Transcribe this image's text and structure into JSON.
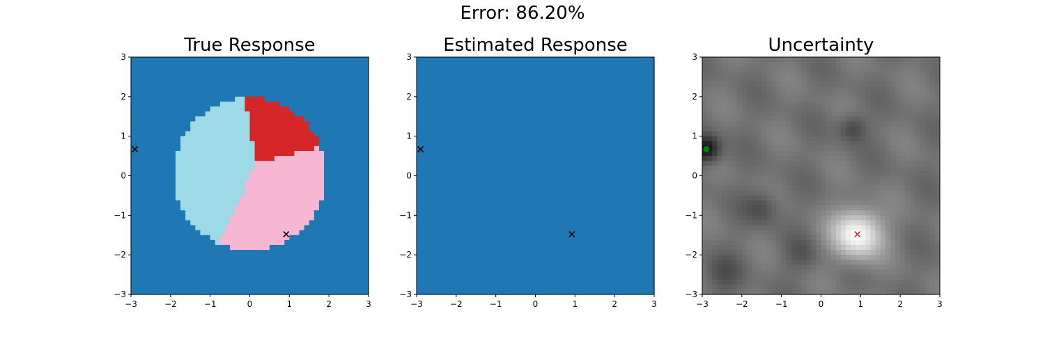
{
  "figure": {
    "suptitle": "Error: 86.20%"
  },
  "chart_data": [
    {
      "type": "heatmap",
      "title": "True Response",
      "xlim": [
        -3,
        3
      ],
      "ylim": [
        -3,
        3
      ],
      "xticks": [
        -3,
        -2,
        -1,
        0,
        1,
        2,
        3
      ],
      "yticks": [
        -3,
        -2,
        -1,
        0,
        1,
        2,
        3
      ],
      "grid": false,
      "colors": {
        "background": "#1f77b4",
        "region_a": "#9edae5",
        "region_b": "#d62728",
        "region_c": "#f7b6d2"
      },
      "regions_description": "disc centered near (0, 0) radius about 1.9 split into three sectors",
      "markers": [
        {
          "x": -2.9,
          "y": 0.67,
          "symbol": "x",
          "color": "#000000"
        },
        {
          "x": 0.92,
          "y": -1.48,
          "symbol": "x",
          "color": "#000000"
        }
      ]
    },
    {
      "type": "heatmap",
      "title": "Estimated Response",
      "xlim": [
        -3,
        3
      ],
      "ylim": [
        -3,
        3
      ],
      "xticks": [
        -3,
        -2,
        -1,
        0,
        1,
        2,
        3
      ],
      "yticks": [
        -3,
        -2,
        -1,
        0,
        1,
        2,
        3
      ],
      "grid": false,
      "colors": {
        "background": "#1f77b4"
      },
      "markers": [
        {
          "x": -2.9,
          "y": 0.67,
          "symbol": "x",
          "color": "#000000"
        },
        {
          "x": 0.92,
          "y": -1.48,
          "symbol": "x",
          "color": "#000000"
        }
      ]
    },
    {
      "type": "heatmap",
      "title": "Uncertainty",
      "xlim": [
        -3,
        3
      ],
      "ylim": [
        -3,
        3
      ],
      "xticks": [
        -3,
        -2,
        -1,
        0,
        1,
        2,
        3
      ],
      "yticks": [
        -3,
        -2,
        -1,
        0,
        1,
        2,
        3
      ],
      "grid": false,
      "colormap": "gray",
      "markers": [
        {
          "x": -2.9,
          "y": 0.67,
          "symbol": "o",
          "color": "#008000"
        },
        {
          "x": 0.92,
          "y": -1.48,
          "symbol": "x",
          "color": "#d62728"
        }
      ]
    }
  ]
}
